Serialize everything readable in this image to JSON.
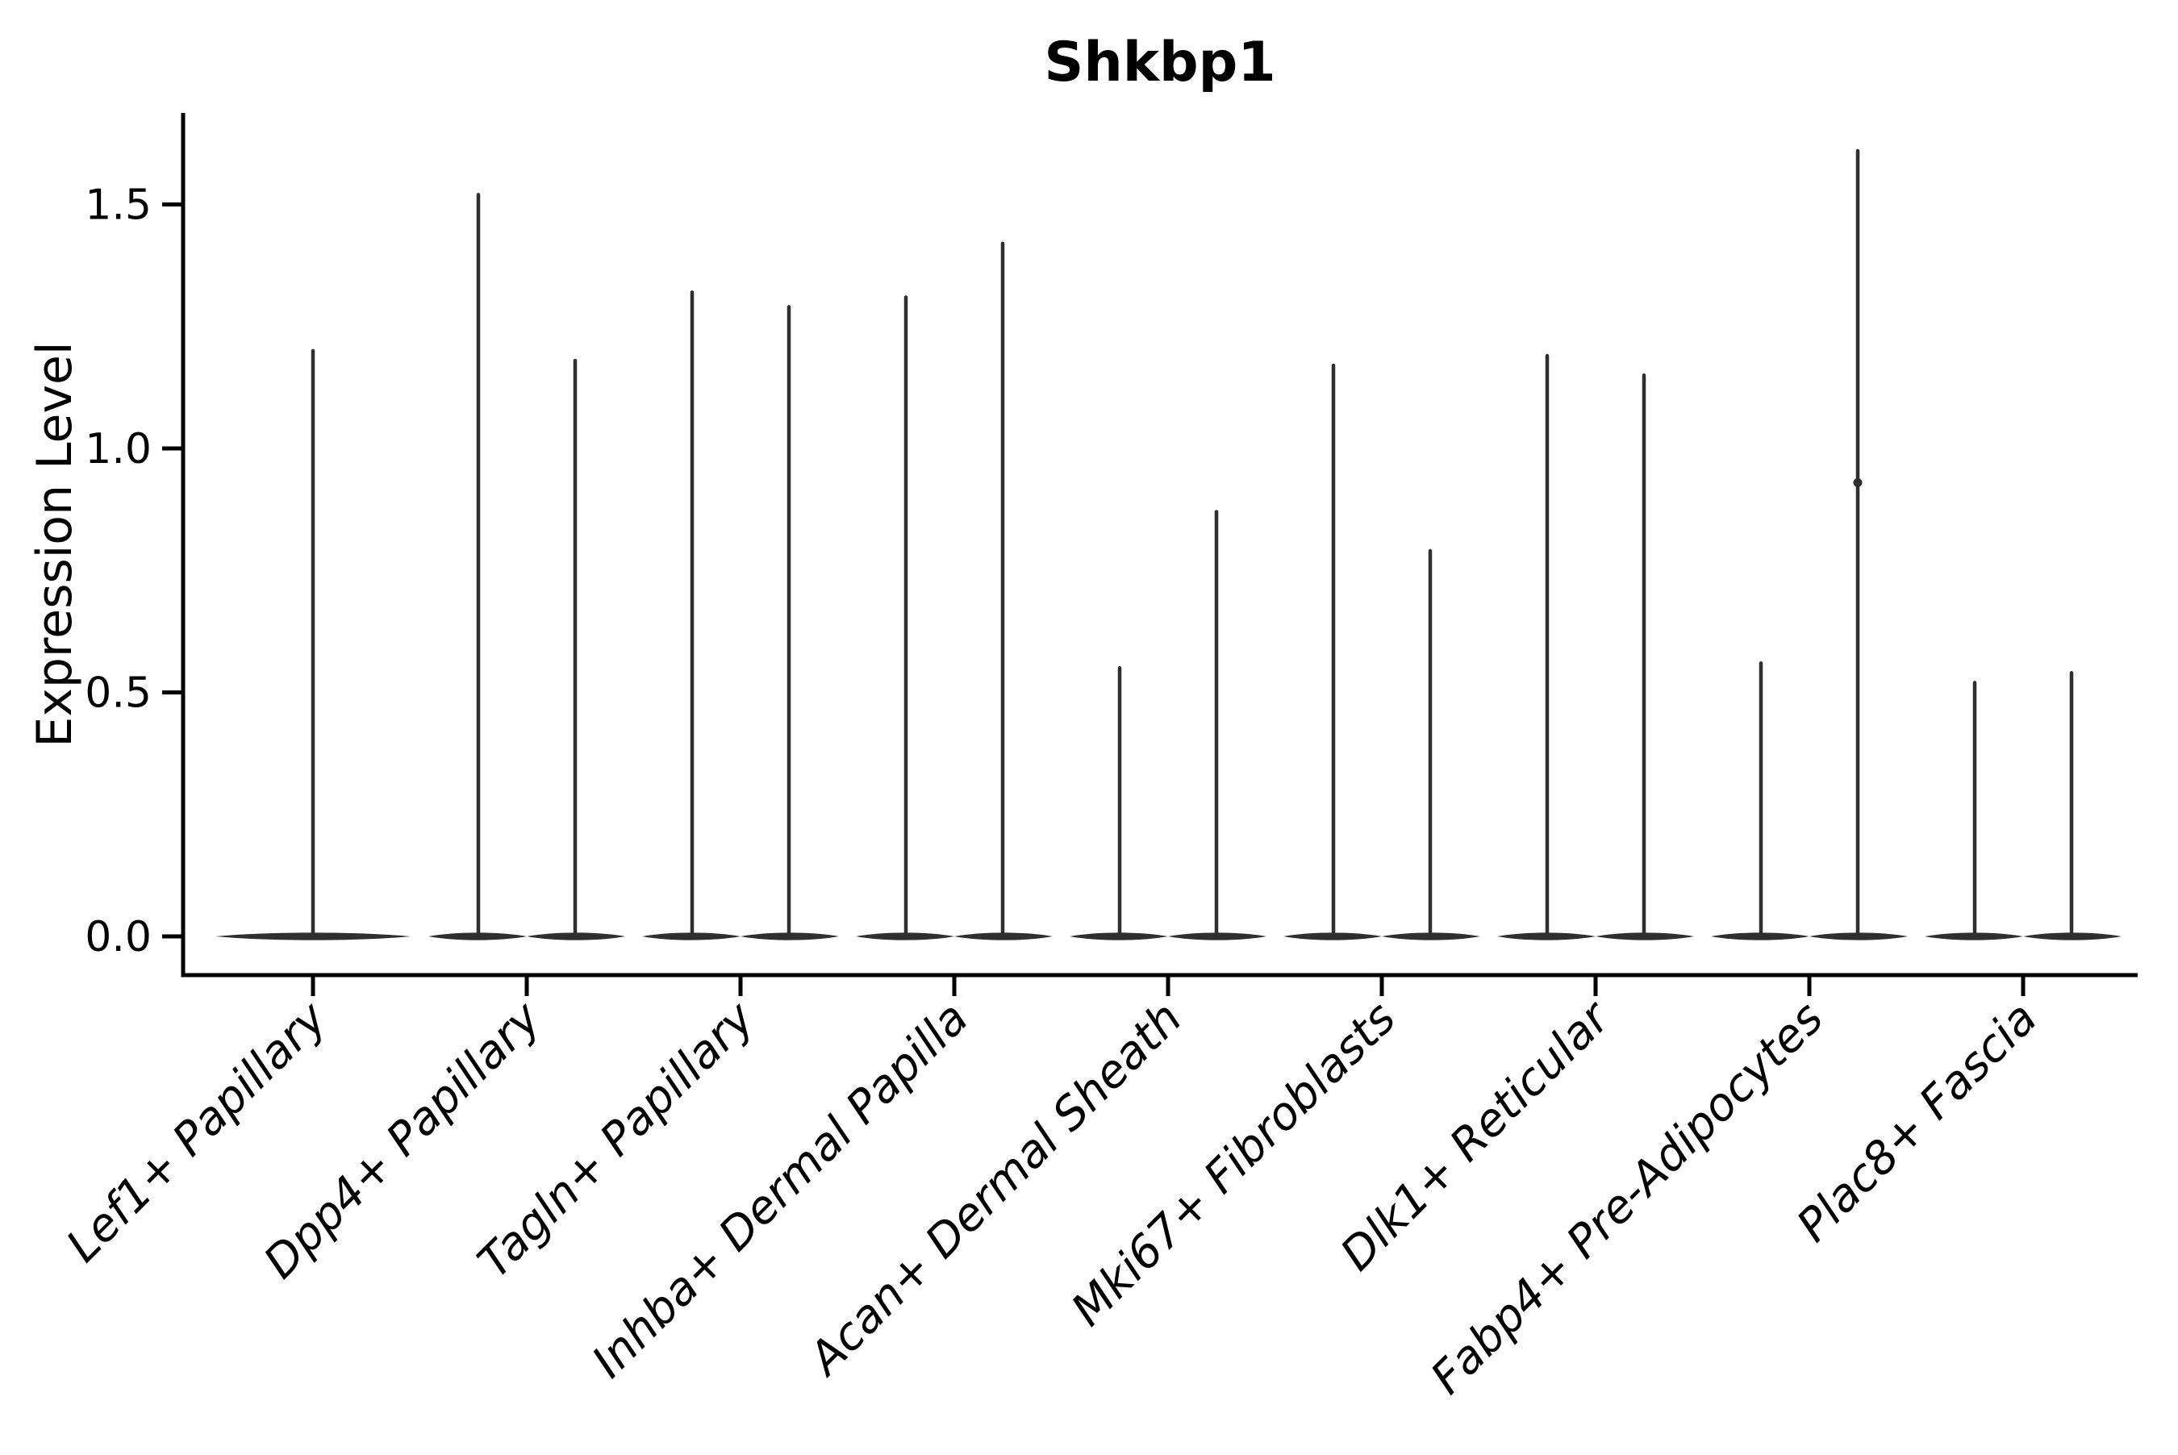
{
  "figure": {
    "background": "#ffffff",
    "ink_color": "#000000",
    "violin_color": "#2f2f2f"
  },
  "chart_data": {
    "type": "violin",
    "title": "Shkbp1",
    "xlabel": "",
    "ylabel": "Expression Level",
    "ytick_labels": [
      "0.0",
      "0.5",
      "1.0",
      "1.5"
    ],
    "ytick_values": [
      0.0,
      0.5,
      1.0,
      1.5
    ],
    "ylim": [
      -0.08,
      1.68
    ],
    "grid": false,
    "legend": "none",
    "categories": [
      "Lef1+ Papillary",
      "Dpp4+ Papillary",
      "Tagln+ Papillary",
      "Inhba+ Dermal Papilla",
      "Acan+ Dermal Sheath",
      "Mki67+ Fibroblasts",
      "Dlk1+ Reticular",
      "Fabp4+ Pre-Adipocytes",
      "Plac8+ Fascia"
    ],
    "description": "Violin plot of Shkbp1 expression per fibroblast cluster. Each violin is flat (density concentrated at expression 0) with a thin vertical spike reaching the maximum expression value. All groups except the first contain two side-by-side violins.",
    "groups": [
      {
        "category": "Lef1+ Papillary",
        "violins": [
          {
            "slot": "full",
            "max": 1.2
          }
        ]
      },
      {
        "category": "Dpp4+ Papillary",
        "violins": [
          {
            "slot": "left",
            "max": 1.52
          },
          {
            "slot": "right",
            "max": 1.18
          }
        ]
      },
      {
        "category": "Tagln+ Papillary",
        "violins": [
          {
            "slot": "left",
            "max": 1.32
          },
          {
            "slot": "right",
            "max": 1.29
          }
        ]
      },
      {
        "category": "Inhba+ Dermal Papilla",
        "violins": [
          {
            "slot": "left",
            "max": 1.31
          },
          {
            "slot": "right",
            "max": 1.42
          }
        ]
      },
      {
        "category": "Acan+ Dermal Sheath",
        "violins": [
          {
            "slot": "left",
            "max": 0.55
          },
          {
            "slot": "right",
            "max": 0.87
          }
        ]
      },
      {
        "category": "Mki67+ Fibroblasts",
        "violins": [
          {
            "slot": "left",
            "max": 1.17
          },
          {
            "slot": "right",
            "max": 0.79
          }
        ]
      },
      {
        "category": "Dlk1+ Reticular",
        "violins": [
          {
            "slot": "left",
            "max": 1.19
          },
          {
            "slot": "right",
            "max": 1.15
          }
        ]
      },
      {
        "category": "Fabp4+ Pre-Adipocytes",
        "violins": [
          {
            "slot": "left",
            "max": 0.56
          },
          {
            "slot": "right",
            "max": 1.61,
            "dot_at": 0.93
          }
        ]
      },
      {
        "category": "Plac8+ Fascia",
        "violins": [
          {
            "slot": "left",
            "max": 0.52
          },
          {
            "slot": "right",
            "max": 0.54
          }
        ]
      }
    ]
  }
}
